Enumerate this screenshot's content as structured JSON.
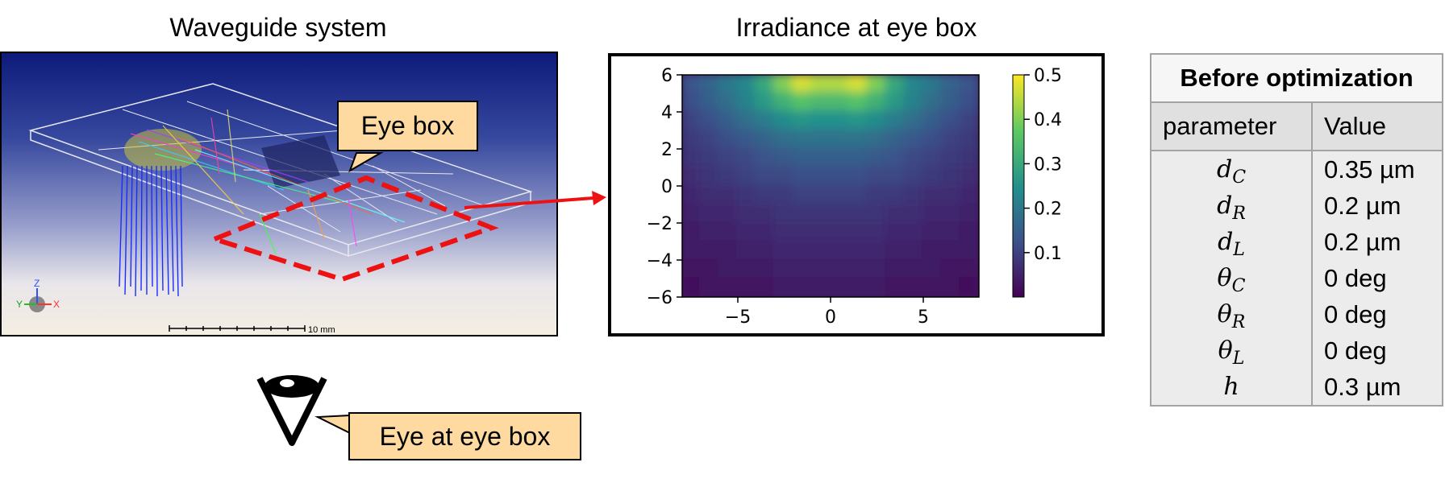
{
  "left_title": "Waveguide system",
  "right_title": "Irradiance at eye box",
  "sim": {
    "axis_labels": [
      "Z",
      "Y",
      "X"
    ],
    "scale_label": "10 mm"
  },
  "callouts": {
    "eye_box": "Eye box",
    "eye_at_eye_box": "Eye at eye box"
  },
  "chart_data": {
    "type": "heatmap",
    "title": "Irradiance at eye box",
    "x_ticks": [
      "−5",
      "0",
      "5"
    ],
    "x_tick_values": [
      -5,
      0,
      5
    ],
    "y_ticks": [
      "6",
      "4",
      "2",
      "0",
      "−2",
      "−4",
      "−6"
    ],
    "y_tick_values": [
      6,
      4,
      2,
      0,
      -2,
      -4,
      -6
    ],
    "xlim": [
      -8,
      8
    ],
    "ylim": [
      -6,
      6
    ],
    "colormap": "viridis",
    "colorbar_ticks": [
      "0.5",
      "0.4",
      "0.3",
      "0.2",
      "0.1"
    ],
    "colorbar_tick_values": [
      0.5,
      0.4,
      0.3,
      0.2,
      0.1
    ],
    "colorbar_range": [
      0.0,
      0.5
    ],
    "grid_x": [
      -7.5,
      -6.5,
      -5.5,
      -4.5,
      -3.5,
      -2.5,
      -1.5,
      -0.5,
      0.5,
      1.5,
      2.5,
      3.5,
      4.5,
      5.5,
      6.5,
      7.5
    ],
    "grid_y": [
      5.5,
      4.5,
      3.5,
      2.5,
      1.5,
      0.5,
      -0.5,
      -1.5,
      -2.5,
      -3.5,
      -4.5,
      -5.5
    ],
    "values": [
      [
        0.13,
        0.16,
        0.2,
        0.23,
        0.3,
        0.4,
        0.47,
        0.44,
        0.44,
        0.47,
        0.4,
        0.3,
        0.23,
        0.2,
        0.16,
        0.13
      ],
      [
        0.12,
        0.15,
        0.18,
        0.22,
        0.27,
        0.32,
        0.36,
        0.34,
        0.34,
        0.36,
        0.32,
        0.27,
        0.22,
        0.18,
        0.15,
        0.12
      ],
      [
        0.1,
        0.12,
        0.15,
        0.18,
        0.21,
        0.24,
        0.26,
        0.25,
        0.25,
        0.26,
        0.24,
        0.21,
        0.18,
        0.15,
        0.12,
        0.1
      ],
      [
        0.09,
        0.1,
        0.12,
        0.14,
        0.16,
        0.18,
        0.19,
        0.19,
        0.19,
        0.19,
        0.18,
        0.16,
        0.14,
        0.12,
        0.1,
        0.09
      ],
      [
        0.08,
        0.09,
        0.1,
        0.11,
        0.13,
        0.14,
        0.15,
        0.15,
        0.15,
        0.15,
        0.14,
        0.13,
        0.11,
        0.1,
        0.09,
        0.08
      ],
      [
        0.07,
        0.08,
        0.09,
        0.1,
        0.11,
        0.11,
        0.12,
        0.12,
        0.12,
        0.12,
        0.11,
        0.11,
        0.1,
        0.09,
        0.08,
        0.07
      ],
      [
        0.06,
        0.07,
        0.07,
        0.08,
        0.09,
        0.09,
        0.1,
        0.1,
        0.1,
        0.1,
        0.09,
        0.09,
        0.08,
        0.07,
        0.07,
        0.06
      ],
      [
        0.05,
        0.06,
        0.06,
        0.07,
        0.07,
        0.08,
        0.08,
        0.08,
        0.08,
        0.08,
        0.08,
        0.07,
        0.07,
        0.06,
        0.06,
        0.05
      ],
      [
        0.04,
        0.05,
        0.05,
        0.06,
        0.06,
        0.07,
        0.07,
        0.07,
        0.07,
        0.07,
        0.07,
        0.06,
        0.06,
        0.05,
        0.05,
        0.04
      ],
      [
        0.04,
        0.04,
        0.04,
        0.05,
        0.05,
        0.06,
        0.06,
        0.06,
        0.06,
        0.06,
        0.06,
        0.05,
        0.05,
        0.04,
        0.04,
        0.04
      ],
      [
        0.03,
        0.03,
        0.04,
        0.04,
        0.04,
        0.05,
        0.05,
        0.05,
        0.05,
        0.05,
        0.05,
        0.04,
        0.04,
        0.04,
        0.03,
        0.03
      ],
      [
        0.02,
        0.03,
        0.03,
        0.03,
        0.03,
        0.04,
        0.04,
        0.04,
        0.04,
        0.04,
        0.04,
        0.03,
        0.03,
        0.03,
        0.03,
        0.02
      ]
    ]
  },
  "table": {
    "title": "Before optimization",
    "col_headers": [
      "parameter",
      "Value"
    ],
    "rows": [
      {
        "symbol": "d",
        "sub": "C",
        "value": "0.35 µm"
      },
      {
        "symbol": "d",
        "sub": "R",
        "value": "0.2 µm"
      },
      {
        "symbol": "d",
        "sub": "L",
        "value": "0.2 µm"
      },
      {
        "symbol": "θ",
        "sub": "C",
        "value": "0 deg"
      },
      {
        "symbol": "θ",
        "sub": "R",
        "value": "0 deg"
      },
      {
        "symbol": "θ",
        "sub": "L",
        "value": "0 deg"
      },
      {
        "symbol": "h",
        "sub": "",
        "value": "0.3 µm"
      }
    ]
  },
  "colors": {
    "callout_fill": "#fed9a0",
    "arrow": "#ee1111",
    "eyebox_outline": "#ee1111",
    "sim_bg_top": "#0d1a7a",
    "sim_bg_bottom": "#f4eee2"
  }
}
